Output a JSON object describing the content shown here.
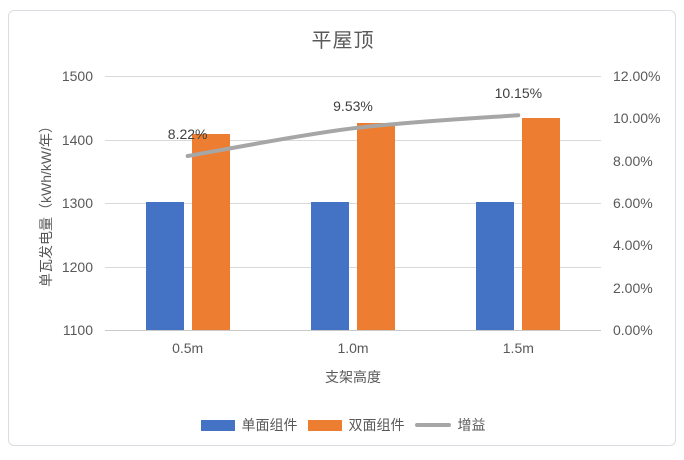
{
  "chart_data": {
    "type": "bar",
    "subtype": "clustered-bar-with-line-combo",
    "title": "平屋顶",
    "categories": [
      "0.5m",
      "1.0m",
      "1.5m"
    ],
    "series": [
      {
        "key": "single-sided-module",
        "name": "单面组件",
        "type": "bar",
        "axis": "left",
        "color": "#4472C4",
        "values": [
          1302,
          1302,
          1302
        ]
      },
      {
        "key": "double-sided-module",
        "name": "双面组件",
        "type": "bar",
        "axis": "left",
        "color": "#ED7D31",
        "values": [
          1409,
          1426,
          1434
        ]
      },
      {
        "key": "gain",
        "name": "增益",
        "type": "line",
        "axis": "right",
        "color": "#A6A6A6",
        "values": [
          8.22,
          9.53,
          10.15
        ],
        "point_labels": [
          "8.22%",
          "9.53%",
          "10.15%"
        ]
      }
    ],
    "xlabel": "支架高度",
    "ylabel_left": "单瓦发电量（kWh/kW/年）",
    "left_axis": {
      "min": 1100,
      "max": 1500,
      "tick_labels": [
        "1500",
        "1400",
        "1300",
        "1200",
        "1100"
      ]
    },
    "right_axis": {
      "min": 0,
      "max": 12,
      "tick_labels": [
        "12.00%",
        "10.00%",
        "8.00%",
        "6.00%",
        "4.00%",
        "2.00%",
        "0.00%"
      ]
    },
    "legend_position": "bottom",
    "grid": true,
    "colors": {
      "gridline": "#D9D9D9",
      "axis_line": "#C9C9C9",
      "tick_text": "#595959",
      "data_label_text": "#404040",
      "title_text": "#595959"
    }
  }
}
